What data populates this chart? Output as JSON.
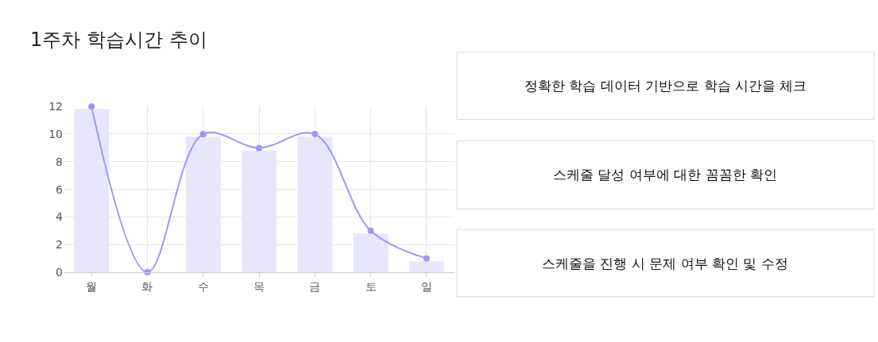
{
  "chart_data": {
    "type": "bar",
    "title": "1주차 학습시간 추이",
    "categories": [
      "월",
      "화",
      "수",
      "목",
      "금",
      "토",
      "일"
    ],
    "series": [
      {
        "color": "#e8e6fd",
        "values": [
          11.8,
          0,
          9.8,
          8.8,
          9.8,
          2.8,
          0.8
        ]
      },
      {
        "type": "line",
        "color": "#9d96fb",
        "values": [
          12,
          0,
          10,
          9,
          10,
          3,
          1
        ],
        "marker": "circle",
        "line_style": "solid"
      }
    ],
    "ylim": [
      0,
      12
    ],
    "yticks": [
      0,
      2,
      4,
      6,
      8,
      10,
      12
    ],
    "grid": true,
    "annotations": [
      "정확한 학습 데이터 기반으로 학습 시간을 체크",
      "스케줄 달성 여부에 대한 꼼꼼한 확인",
      "스케줄을 진행 시 문제 여부 확인 및 수정"
    ]
  }
}
